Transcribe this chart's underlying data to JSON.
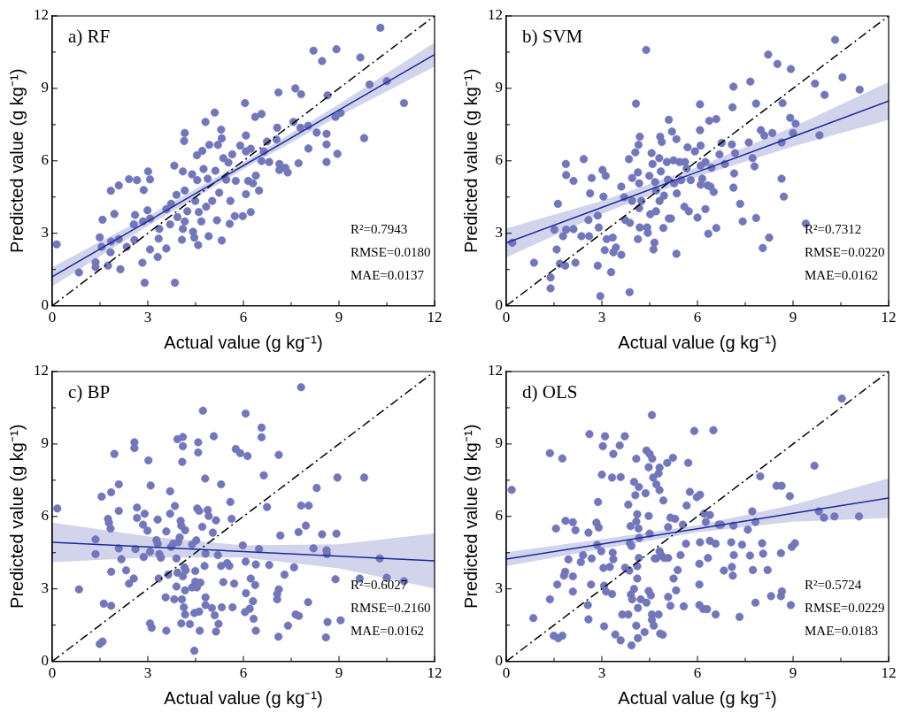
{
  "chart_data": [
    {
      "type": "scatter",
      "title": "a) RF",
      "xlabel": "Actual value (g kg⁻¹)",
      "ylabel": "Predicted value (g kg⁻¹)",
      "xlim": [
        0,
        12
      ],
      "ylim": [
        0,
        12
      ],
      "xticks": [
        0,
        {
          "value": 1.5,
          "label": null
        },
        3,
        {
          "value": 4.5,
          "label": null
        },
        6,
        {
          "value": 7.5,
          "label": null
        },
        9,
        {
          "value": 10.5,
          "label": null
        },
        12
      ],
      "yticks": [
        0,
        {
          "value": 1.5,
          "label": null
        },
        3,
        {
          "value": 4.5,
          "label": null
        },
        6,
        {
          "value": 7.5,
          "label": null
        },
        9,
        {
          "value": 10.5,
          "label": null
        },
        12
      ],
      "marker": "circle",
      "annotations": [
        "R²=0.7943",
        "RMSE=0.0180",
        "MAE=0.0137"
      ],
      "series": [
        {
          "color": "#7276bb",
          "x": [
            0.14,
            0.84,
            1.36,
            1.36,
            1.49,
            1.58,
            1.55,
            1.75,
            1.85,
            1.83,
            1.84,
            1.95,
            2.09,
            2.09,
            2.14,
            2.34,
            2.41,
            2.56,
            2.6,
            2.58,
            2.66,
            2.83,
            2.87,
            2.9,
            2.85,
            2.99,
            3.01,
            3.07,
            3.07,
            3.07,
            3.31,
            3.34,
            3.36,
            3.58,
            3.58,
            3.73,
            3.7,
            3.83,
            3.85,
            3.9,
            3.93,
            4.07,
            4.1,
            4.1,
            4.16,
            4.14,
            4.16,
            4.16,
            4.24,
            4.39,
            4.42,
            4.46,
            4.49,
            4.54,
            4.58,
            4.55,
            4.6,
            4.68,
            4.71,
            4.75,
            4.81,
            4.83,
            4.88,
            4.91,
            4.93,
            5.02,
            5.12,
            5.1,
            5.17,
            5.2,
            5.24,
            5.3,
            5.32,
            5.32,
            5.37,
            5.46,
            5.53,
            5.59,
            5.57,
            5.65,
            5.73,
            5.76,
            5.9,
            5.98,
            6.05,
            6.08,
            6.08,
            6.08,
            6.15,
            6.23,
            6.23,
            6.3,
            6.37,
            6.39,
            6.49,
            6.57,
            6.57,
            6.64,
            6.74,
            6.81,
            7.04,
            7.06,
            7.1,
            7.13,
            7.13,
            7.32,
            7.39,
            7.57,
            7.63,
            7.73,
            7.79,
            7.81,
            8.03,
            8.04,
            8.2,
            8.3,
            8.47,
            8.61,
            8.61,
            8.61,
            8.64,
            8.89,
            8.92,
            8.95,
            9.05,
            9.67,
            9.79,
            9.96,
            10.3,
            10.5,
            11.04
          ],
          "values": [
            2.54,
            1.38,
            1.8,
            1.6,
            2.83,
            3.56,
            2.44,
            1.66,
            2.66,
            2.21,
            4.76,
            3.8,
            4.98,
            2.76,
            1.51,
            2.44,
            5.24,
            3.37,
            3.76,
            2.72,
            5.2,
            1.78,
            4.79,
            0.95,
            3.49,
            3.95,
            5.56,
            5.23,
            2.33,
            3.61,
            2.02,
            2.78,
            3.18,
            2.37,
            4.0,
            4.22,
            3.37,
            5.8,
            0.95,
            4.59,
            3.67,
            2.73,
            3.18,
            5.56,
            7.15,
            6.82,
            4.77,
            3.49,
            3.91,
            5.44,
            3.06,
            2.82,
            4.34,
            6.23,
            2.51,
            5.2,
            3.88,
            3.49,
            6.41,
            5.66,
            7.61,
            4.1,
            5.26,
            2.88,
            6.66,
            4.34,
            5.59,
            8.0,
            3.54,
            6.66,
            4.68,
            7.29,
            6.93,
            2.7,
            6.11,
            5.22,
            5.93,
            4.34,
            3.39,
            6.27,
            3.71,
            5.17,
            6.63,
            3.71,
            8.39,
            7.05,
            4.62,
            6.39,
            5.17,
            3.88,
            6.5,
            5.07,
            7.82,
            5.39,
            4.77,
            7.94,
            5.99,
            6.39,
            6.8,
            5.95,
            6.88,
            7.37,
            8.83,
            5.87,
            5.62,
            5.71,
            5.52,
            7.61,
            9.0,
            5.9,
            7.37,
            8.76,
            7.45,
            6.51,
            10.56,
            7.17,
            10.13,
            6.68,
            7.12,
            5.95,
            8.71,
            7.82,
            10.62,
            6.29,
            7.98,
            10.28,
            6.94,
            9.16,
            11.51,
            9.3,
            8.39
          ]
        },
        {
          "type": "line",
          "color": "#1c2a9c",
          "x": [
            0,
            3,
            6,
            9,
            12
          ],
          "values": [
            1.2,
            3.5,
            5.8,
            8.1,
            10.4
          ],
          "lower": [
            0.8,
            3.3,
            5.65,
            7.85,
            9.9
          ],
          "upper": [
            1.6,
            3.7,
            5.95,
            8.35,
            10.9
          ],
          "marker": "none"
        },
        {
          "type": "line",
          "color": "#000000",
          "x": [
            0,
            12
          ],
          "values": [
            0,
            12
          ],
          "line_style": "dashdot",
          "marker": "none"
        }
      ]
    },
    {
      "type": "scatter",
      "title": "b) SVM",
      "xlabel": "Actual value (g kg⁻¹)",
      "ylabel": "Predicted value (g kg⁻¹)",
      "xlim": [
        0,
        12
      ],
      "ylim": [
        0,
        12
      ],
      "xticks": [
        0,
        {
          "value": 1.5,
          "label": null
        },
        3,
        {
          "value": 4.5,
          "label": null
        },
        6,
        {
          "value": 7.5,
          "label": null
        },
        9,
        {
          "value": 10.5,
          "label": null
        },
        12
      ],
      "yticks": [
        0,
        {
          "value": 1.5,
          "label": null
        },
        3,
        {
          "value": 4.5,
          "label": null
        },
        6,
        {
          "value": 7.5,
          "label": null
        },
        9,
        {
          "value": 10.5,
          "label": null
        },
        12
      ],
      "marker": "circle",
      "annotations": [
        "R²=0.7312",
        "RMSE=0.0220",
        "MAE=0.0162"
      ],
      "series": [
        {
          "color": "#7276bb",
          "x": [
            0.19,
            0.87,
            1.39,
            1.39,
            1.51,
            1.58,
            1.62,
            1.68,
            1.78,
            1.85,
            1.87,
            1.88,
            1.88,
            2.11,
            2.11,
            2.17,
            2.36,
            2.43,
            2.58,
            2.6,
            2.63,
            2.68,
            2.87,
            2.87,
            2.9,
            2.95,
            3.02,
            3.05,
            3.09,
            3.12,
            3.15,
            3.29,
            3.34,
            3.36,
            3.44,
            3.61,
            3.61,
            3.7,
            3.73,
            3.85,
            3.87,
            3.88,
            3.95,
            3.95,
            4.05,
            4.07,
            4.13,
            4.13,
            4.15,
            4.17,
            4.17,
            4.19,
            4.19,
            4.24,
            4.39,
            4.42,
            4.44,
            4.49,
            4.52,
            4.56,
            4.59,
            4.62,
            4.65,
            4.67,
            4.7,
            4.7,
            4.8,
            4.81,
            4.83,
            4.85,
            4.88,
            4.93,
            4.95,
            5.04,
            5.07,
            5.1,
            5.1,
            5.17,
            5.2,
            5.25,
            5.27,
            5.34,
            5.34,
            5.35,
            5.44,
            5.49,
            5.59,
            5.61,
            5.66,
            5.69,
            5.73,
            5.79,
            5.92,
            6.0,
            6.08,
            6.08,
            6.1,
            6.1,
            6.1,
            6.15,
            6.25,
            6.25,
            6.32,
            6.34,
            6.37,
            6.41,
            6.44,
            6.51,
            6.59,
            6.59,
            6.69,
            6.76,
            6.86,
            7.08,
            7.1,
            7.13,
            7.13,
            7.15,
            7.18,
            7.34,
            7.42,
            7.61,
            7.66,
            7.73,
            7.79,
            7.84,
            7.84,
            7.99,
            8.05,
            8.1,
            8.22,
            8.25,
            8.35,
            8.51,
            8.64,
            8.64,
            8.67,
            8.71,
            8.91,
            8.93,
            9.0,
            9.08,
            9.4,
            9.69,
            9.83,
            9.99,
            10.32,
            10.55,
            11.09
          ],
          "values": [
            2.61,
            1.78,
            1.17,
            0.72,
            3.15,
            2.33,
            4.22,
            1.74,
            2.88,
            1.66,
            5.87,
            5.41,
            3.15,
            5.17,
            3.17,
            1.78,
            2.88,
            6.07,
            3.55,
            2.88,
            4.65,
            5.29,
            1.66,
            3.73,
            3.24,
            0.4,
            5.62,
            4.52,
            2.3,
            5.38,
            2.76,
            1.39,
            2.82,
            2.21,
            2.41,
            4.93,
            2.11,
            4.49,
            3.55,
            6.07,
            0.56,
            3.43,
            5.29,
            4.34,
            6.35,
            8.37,
            5.52,
            2.76,
            6.66,
            5.07,
            4.04,
            7.0,
            3.24,
            4.34,
            10.59,
            3.24,
            3.02,
            5.38,
            3.79,
            6.32,
            5.87,
            2.33,
            2.61,
            5.12,
            3.91,
            4.77,
            6.11,
            4.34,
            7.0,
            5.56,
            6.78,
            3.22,
            4.56,
            5.95,
            5.22,
            7.7,
            3.61,
            3.61,
            7.21,
            6.02,
            5.07,
            6.9,
            2.15,
            4.65,
            5.95,
            5.2,
            4.1,
            5.95,
            5.68,
            6.56,
            3.91,
            5.2,
            6.39,
            3.65,
            8.34,
            7.27,
            6.63,
            5.8,
            5.01,
            5.26,
            5.95,
            4.0,
            4.98,
            2.98,
            7.66,
            4.93,
            5.71,
            4.71,
            7.73,
            3.22,
            6.27,
            6.74,
            5.87,
            6.68,
            8.22,
            9.07,
            4.89,
            5.48,
            6.32,
            4.22,
            3.49,
            6.76,
            9.28,
            6.11,
            5.77,
            8.37,
            3.63,
            7.27,
            2.39,
            7.05,
            10.4,
            2.82,
            7.15,
            10.01,
            6.76,
            5.26,
            8.39,
            4.52,
            7.78,
            9.8,
            7.15,
            7.54,
            3.4,
            9.2,
            7.06,
            8.73,
            11.01,
            9.46,
            8.95
          ]
        },
        {
          "type": "line",
          "color": "#1c2a9c",
          "x": [
            0,
            3,
            6,
            9,
            12
          ],
          "values": [
            2.6,
            4.07,
            5.54,
            7.0,
            8.48
          ],
          "lower": [
            2.0,
            3.8,
            5.34,
            6.6,
            7.7
          ],
          "upper": [
            3.2,
            4.34,
            5.74,
            7.4,
            9.26
          ],
          "marker": "none"
        },
        {
          "type": "line",
          "color": "#000000",
          "x": [
            0,
            12
          ],
          "values": [
            0,
            12
          ],
          "line_style": "dashdot",
          "marker": "none"
        }
      ]
    },
    {
      "type": "scatter",
      "title": "c) BP",
      "xlabel": "Actual value (g kg⁻¹)",
      "ylabel": "Predicted value (g kg⁻¹)",
      "xlim": [
        0,
        12
      ],
      "ylim": [
        0,
        12
      ],
      "xticks": [
        0,
        {
          "value": 1.5,
          "label": null
        },
        3,
        {
          "value": 4.5,
          "label": null
        },
        6,
        {
          "value": 7.5,
          "label": null
        },
        9,
        {
          "value": 10.5,
          "label": null
        },
        12
      ],
      "yticks": [
        0,
        {
          "value": 1.5,
          "label": null
        },
        3,
        {
          "value": 4.5,
          "label": null
        },
        6,
        {
          "value": 7.5,
          "label": null
        },
        9,
        {
          "value": 10.5,
          "label": null
        },
        12
      ],
      "marker": "circle",
      "annotations": [
        "R²=0.6027",
        "RMSE=0.2160",
        "MAE=0.0162"
      ],
      "series": [
        {
          "color": "#7276bb",
          "x": [
            0.16,
            0.84,
            1.36,
            1.36,
            1.49,
            1.58,
            1.55,
            1.62,
            1.75,
            1.78,
            1.83,
            1.85,
            1.85,
            1.85,
            1.95,
            2.09,
            2.09,
            2.09,
            2.17,
            2.32,
            2.41,
            2.56,
            2.58,
            2.58,
            2.61,
            2.66,
            2.66,
            2.85,
            2.87,
            2.9,
            2.99,
            3.02,
            3.07,
            3.07,
            3.09,
            3.12,
            3.27,
            3.31,
            3.31,
            3.34,
            3.36,
            3.41,
            3.56,
            3.58,
            3.58,
            3.64,
            3.7,
            3.7,
            3.73,
            3.8,
            3.83,
            3.85,
            3.9,
            3.9,
            3.93,
            3.93,
            3.95,
            4.0,
            4.03,
            4.05,
            4.05,
            4.07,
            4.08,
            4.1,
            4.1,
            4.1,
            4.13,
            4.15,
            4.17,
            4.17,
            4.17,
            4.19,
            4.32,
            4.39,
            4.39,
            4.46,
            4.46,
            4.49,
            4.49,
            4.52,
            4.54,
            4.55,
            4.58,
            4.58,
            4.61,
            4.61,
            4.63,
            4.65,
            4.71,
            4.73,
            4.78,
            4.8,
            4.81,
            4.81,
            4.81,
            4.88,
            4.91,
            5.01,
            5.04,
            5.07,
            5.1,
            5.14,
            5.14,
            5.2,
            5.22,
            5.3,
            5.3,
            5.32,
            5.37,
            5.49,
            5.56,
            5.59,
            5.63,
            5.66,
            5.71,
            5.76,
            5.9,
            5.98,
            6.05,
            6.07,
            6.07,
            6.08,
            6.13,
            6.2,
            6.23,
            6.3,
            6.32,
            6.37,
            6.39,
            6.39,
            6.49,
            6.57,
            6.57,
            6.64,
            6.74,
            6.81,
            7.06,
            7.06,
            7.1,
            7.11,
            7.11,
            7.16,
            7.29,
            7.4,
            7.59,
            7.64,
            7.74,
            7.73,
            7.81,
            7.81,
            7.96,
            8.03,
            8.05,
            8.2,
            8.3,
            8.47,
            8.59,
            8.61,
            8.62,
            8.64,
            8.89,
            8.92,
            8.95,
            9.05,
            9.65,
            9.79,
            10.28,
            10.5,
            11.04
          ],
          "values": [
            6.33,
            2.98,
            5.05,
            4.44,
            0.72,
            0.82,
            6.82,
            2.39,
            5.9,
            5.74,
            5.5,
            7.0,
            3.71,
            2.3,
            8.59,
            7.33,
            6.23,
            4.68,
            4.23,
            3.77,
            3.22,
            3.43,
            9.07,
            8.83,
            4.65,
            6.37,
            5.94,
            5.66,
            4.32,
            6.11,
            5.41,
            8.32,
            1.57,
            4.54,
            7.28,
            1.39,
            5.02,
            5.87,
            4.87,
            3.43,
            4.44,
            4.29,
            2.65,
            1.27,
            5.38,
            3.59,
            7.04,
            6.11,
            4.74,
            4.87,
            2.57,
            6.43,
            4.26,
            3.1,
            9.2,
            3.67,
            4.93,
            5.13,
            5.82,
            5.62,
            1.57,
            2.57,
            8.26,
            9.29,
            8.91,
            3.52,
            2.24,
            3.89,
            5.43,
            2.94,
            1.94,
            3.77,
            1.54,
            4.84,
            3.06,
            0.44,
            2.0,
            3.74,
            3.3,
            5.01,
            3.06,
            6.33,
            8.65,
            9.07,
            2.06,
            6.23,
            1.27,
            3.26,
            5.57,
            10.38,
            3.95,
            7.57,
            4.46,
            2.65,
            2.33,
            6.27,
            6.02,
            2.21,
            5.33,
            9.32,
            1.91,
            1.23,
            5.84,
            4.4,
            1.55,
            7.33,
            3.95,
            2.24,
            3.28,
            4.07,
            3.95,
            6.6,
            5.9,
            2.24,
            3.22,
            8.79,
            8.62,
            4.8,
            2.04,
            10.26,
            4.13,
            2.82,
            8.5,
            2.18,
            3.43,
            2.49,
            1.76,
            3.16,
            1.27,
            4.01,
            4.65,
            9.68,
            9.28,
            7.7,
            6.39,
            3.99,
            2.57,
            2.79,
            1.02,
            2.98,
            8.55,
            5.21,
            3.59,
            1.48,
            3.89,
            1.94,
            1.88,
            5.35,
            11.35,
            6.45,
            5.62,
            2.45,
            6.45,
            4.68,
            7.18,
            5.26,
            0.99,
            4.6,
            4.44,
            1.63,
            3.4,
            5.29,
            7.61,
            1.7,
            3.43,
            7.61,
            4.26,
            3.46,
            3.32
          ]
        },
        {
          "type": "line",
          "color": "#1c2a9c",
          "x": [
            0,
            3,
            6,
            9,
            12
          ],
          "values": [
            4.93,
            4.74,
            4.55,
            4.35,
            4.16
          ],
          "lower": [
            4.11,
            4.3,
            4.3,
            3.85,
            3.02
          ],
          "upper": [
            5.75,
            5.18,
            4.8,
            4.85,
            5.3
          ],
          "marker": "none"
        },
        {
          "type": "line",
          "color": "#000000",
          "x": [
            0,
            12
          ],
          "values": [
            0,
            12
          ],
          "line_style": "dashdot",
          "marker": "none"
        }
      ]
    },
    {
      "type": "scatter",
      "title": "d) OLS",
      "xlabel": "Actual value (g kg⁻¹)",
      "ylabel": "Predicted value (g kg⁻¹)",
      "xlim": [
        0,
        12
      ],
      "ylim": [
        0,
        12
      ],
      "xticks": [
        0,
        {
          "value": 1.5,
          "label": null
        },
        3,
        {
          "value": 4.5,
          "label": null
        },
        6,
        {
          "value": 7.5,
          "label": null
        },
        9,
        {
          "value": 10.5,
          "label": null
        },
        12
      ],
      "yticks": [
        0,
        {
          "value": 1.5,
          "label": null
        },
        3,
        {
          "value": 4.5,
          "label": null
        },
        6,
        {
          "value": 7.5,
          "label": null
        },
        9,
        {
          "value": 10.5,
          "label": null
        },
        12
      ],
      "marker": "circle",
      "annotations": [
        "R²=0.5724",
        "RMSE=0.0229",
        "MAE=0.0183"
      ],
      "series": [
        {
          "color": "#7276bb",
          "x": [
            0.17,
            0.85,
            1.37,
            1.37,
            1.49,
            1.56,
            1.6,
            1.63,
            1.76,
            1.76,
            1.81,
            1.85,
            1.86,
            1.95,
            2.09,
            2.09,
            2.09,
            2.17,
            2.34,
            2.41,
            2.56,
            2.58,
            2.58,
            2.61,
            2.66,
            2.68,
            2.83,
            2.85,
            2.88,
            2.9,
            2.98,
            3.0,
            3.03,
            3.05,
            3.07,
            3.07,
            3.1,
            3.13,
            3.25,
            3.32,
            3.32,
            3.34,
            3.36,
            3.36,
            3.42,
            3.56,
            3.59,
            3.59,
            3.64,
            3.72,
            3.73,
            3.83,
            3.83,
            3.86,
            3.88,
            3.9,
            3.91,
            3.93,
            3.93,
            3.95,
            4.01,
            4.01,
            4.05,
            4.08,
            4.08,
            4.08,
            4.11,
            4.11,
            4.11,
            4.13,
            4.13,
            4.15,
            4.16,
            4.16,
            4.17,
            4.22,
            4.34,
            4.37,
            4.4,
            4.4,
            4.47,
            4.47,
            4.47,
            4.5,
            4.5,
            4.54,
            4.57,
            4.57,
            4.57,
            4.58,
            4.61,
            4.63,
            4.66,
            4.71,
            4.71,
            4.78,
            4.78,
            4.81,
            4.81,
            4.81,
            4.83,
            4.86,
            4.91,
            4.93,
            4.96,
            5.05,
            5.08,
            5.08,
            5.08,
            5.15,
            5.15,
            5.23,
            5.25,
            5.3,
            5.33,
            5.38,
            5.47,
            5.54,
            5.57,
            5.64,
            5.66,
            5.71,
            5.76,
            5.9,
            5.98,
            6.06,
            6.06,
            6.06,
            6.08,
            6.08,
            6.18,
            6.21,
            6.26,
            6.3,
            6.33,
            6.39,
            6.39,
            6.5,
            6.57,
            6.57,
            6.67,
            6.74,
            6.83,
            7.06,
            7.08,
            7.11,
            7.13,
            7.14,
            7.32,
            7.4,
            7.58,
            7.65,
            7.72,
            7.74,
            7.82,
            7.82,
            7.97,
            8.03,
            8.06,
            8.2,
            8.31,
            8.48,
            8.62,
            8.64,
            8.65,
            8.62,
            8.9,
            8.93,
            8.96,
            9.06,
            9.67,
            9.81,
            9.97,
            10.3,
            10.53,
            11.07
          ],
          "values": [
            7.1,
            1.79,
            2.57,
            8.62,
            1.06,
            5.5,
            3.18,
            0.96,
            8.4,
            1.06,
            3.55,
            3.71,
            5.82,
            4.22,
            5.76,
            3.52,
            2.89,
            5.43,
            4.11,
            4.4,
            2.33,
            5.33,
            1.74,
            9.41,
            3.18,
            4.26,
            5.74,
            4.82,
            6.6,
            5.54,
            4.56,
            7.73,
            8.91,
            3.87,
            3.13,
            1.45,
            9.32,
            2.89,
            3.91,
            2.79,
            7.61,
            4.5,
            8.59,
            4.23,
            1.11,
            8.94,
            7.63,
            0.87,
            1.94,
            9.32,
            3.88,
            1.94,
            6.49,
            3.76,
            4.89,
            5.6,
            2.77,
            0.66,
            4.78,
            2.57,
            3.0,
            7.43,
            6.88,
            8.39,
            1.48,
            5.79,
            6.09,
            3.94,
            3.43,
            2.21,
            0.96,
            5.5,
            4.28,
            7.22,
            5.11,
            2.57,
            1.21,
            6.96,
            2.43,
            8.73,
            2.91,
            8.04,
            6.02,
            5.29,
            8.59,
            2.73,
            1.94,
            10.2,
            1.72,
            8.39,
            7.61,
            1.48,
            4.26,
            7.33,
            4.26,
            1.94,
            7.78,
            8.02,
            7.09,
            4.56,
            1.15,
            4.4,
            1.1,
            6.66,
            4.28,
            8.22,
            4.28,
            2.67,
            5.56,
            2.3,
            5.95,
            8.43,
            3.43,
            5.9,
            2.94,
            3.78,
            4.4,
            5.66,
            2.28,
            4.87,
            6.45,
            8.22,
            7.02,
            9.54,
            6.8,
            2.33,
            3.18,
            4.04,
            4.93,
            6.9,
            2.17,
            6.11,
            5.77,
            2.16,
            4.28,
            6.06,
            4.99,
            9.57,
            1.94,
            4.87,
            5.66,
            5.66,
            3.76,
            4.93,
            3.91,
            3.55,
            5.62,
            4.4,
            1.84,
            4.83,
            5.45,
            4.38,
            6.21,
            3.78,
            5.77,
            2.43,
            7.66,
            4.89,
            4.46,
            3.78,
            2.7,
            7.27,
            2.7,
            7.27,
            2.9,
            4.48,
            6.84,
            2.33,
            4.74,
            4.89,
            8.1,
            6.21,
            5.95,
            6.0,
            10.88,
            6.0
          ]
        },
        {
          "type": "line",
          "color": "#1c2a9c",
          "x": [
            0,
            3,
            6,
            9,
            12
          ],
          "values": [
            4.23,
            4.86,
            5.49,
            6.13,
            6.76
          ],
          "lower": [
            3.94,
            4.66,
            5.34,
            5.78,
            5.94
          ],
          "upper": [
            4.52,
            5.06,
            5.64,
            6.48,
            7.58
          ],
          "marker": "none"
        },
        {
          "type": "line",
          "color": "#000000",
          "x": [
            0,
            12
          ],
          "values": [
            0,
            12
          ],
          "line_style": "dashdot",
          "marker": "none"
        }
      ]
    }
  ]
}
